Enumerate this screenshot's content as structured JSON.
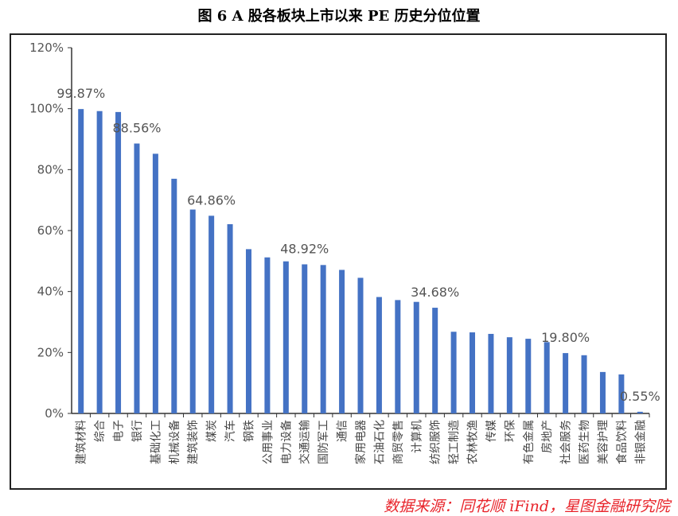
{
  "title": "图 6 A 股各板块上市以来 PE 历史分位位置",
  "source": "数据来源：同花顺 iFind，星图金融研究院",
  "chart_data": {
    "type": "bar",
    "categories": [
      "建筑材料",
      "综合",
      "电子",
      "银行",
      "基础化工",
      "机械设备",
      "建筑装饰",
      "煤炭",
      "汽车",
      "钢铁",
      "公用事业",
      "电力设备",
      "交通运输",
      "国防军工",
      "通信",
      "家用电器",
      "石油石化",
      "商贸零售",
      "计算机",
      "纺织服饰",
      "轻工制造",
      "农林牧渔",
      "传媒",
      "环保",
      "有色金属",
      "房地产",
      "社会服务",
      "医药生物",
      "美容护理",
      "食品饮料",
      "非银金融"
    ],
    "values": [
      99.87,
      99.2,
      98.9,
      88.56,
      85.2,
      77.0,
      66.9,
      64.86,
      62.1,
      53.9,
      51.2,
      49.9,
      48.92,
      48.7,
      47.1,
      44.5,
      38.2,
      37.2,
      36.6,
      34.68,
      26.8,
      26.6,
      26.1,
      25.0,
      24.5,
      23.4,
      19.8,
      19.1,
      13.6,
      12.8,
      0.55
    ],
    "data_labels": [
      {
        "index": 0,
        "text": "99.87%"
      },
      {
        "index": 3,
        "text": "88.56%"
      },
      {
        "index": 7,
        "text": "64.86%"
      },
      {
        "index": 12,
        "text": "48.92%"
      },
      {
        "index": 19,
        "text": "34.68%"
      },
      {
        "index": 26,
        "text": "19.80%"
      },
      {
        "index": 30,
        "text": "0.55%"
      }
    ],
    "yticks": [
      "0%",
      "20%",
      "40%",
      "60%",
      "80%",
      "100%",
      "120%"
    ],
    "ylim": [
      0,
      120
    ],
    "bar_color": "#4472c4",
    "grid": false
  }
}
